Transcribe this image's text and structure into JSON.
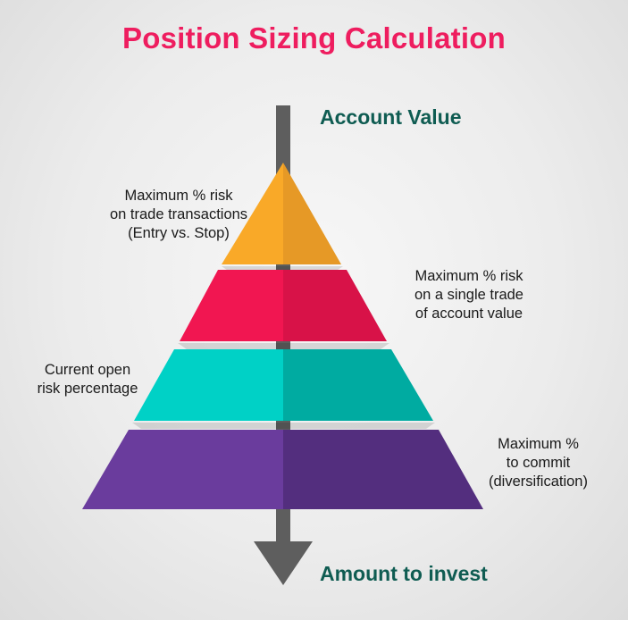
{
  "title": "Position Sizing Calculation",
  "flow": {
    "top_label": "Account Value",
    "bottom_label": "Amount to invest"
  },
  "tiers": [
    {
      "lines": [
        "Maximum % risk",
        "on trade transactions",
        "(Entry vs. Stop)"
      ],
      "light_color": "#f9a928",
      "dark_color": "#e69926"
    },
    {
      "lines": [
        "Maximum % risk",
        "on a single trade",
        "of account value"
      ],
      "light_color": "#f11651",
      "dark_color": "#d81248"
    },
    {
      "lines": [
        "Current open",
        "risk percentage"
      ],
      "light_color": "#00d1c6",
      "dark_color": "#00aba1"
    },
    {
      "lines": [
        "Maximum %",
        "to commit",
        "(diversification)"
      ],
      "light_color": "#6a3c9d",
      "dark_color": "#532e7e"
    }
  ],
  "colors": {
    "title": "#ee1d5f",
    "flow_label": "#0f5c52",
    "arrow": "#5e5e5e"
  }
}
